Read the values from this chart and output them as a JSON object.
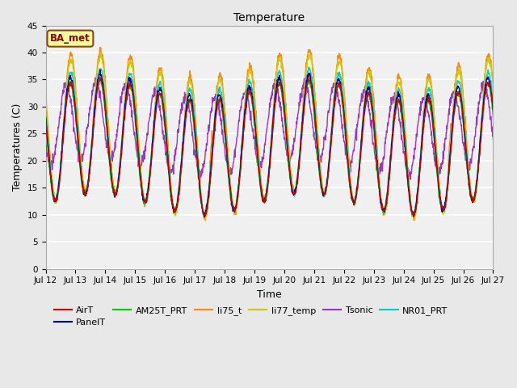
{
  "title": "Temperature",
  "xlabel": "Time",
  "ylabel": "Temperatures (C)",
  "ylim": [
    0,
    45
  ],
  "yticks": [
    0,
    5,
    10,
    15,
    20,
    25,
    30,
    35,
    40,
    45
  ],
  "annotation_text": "BA_met",
  "annotation_color": "#8B0000",
  "annotation_bg": "#FFFF99",
  "series_colors": {
    "AirT": "#CC0000",
    "PanelT": "#000099",
    "AM25T_PRT": "#00CC00",
    "li75_t": "#FF8800",
    "li77_temp": "#CCCC00",
    "Tsonic": "#9933CC",
    "NR01_PRT": "#00CCCC"
  },
  "n_days": 15,
  "start_day": 12,
  "samples_per_day": 96,
  "bg_color": "#E8E8E8",
  "plot_bg": "#F0F0F0",
  "figwidth": 6.4,
  "figheight": 4.8,
  "dpi": 100
}
